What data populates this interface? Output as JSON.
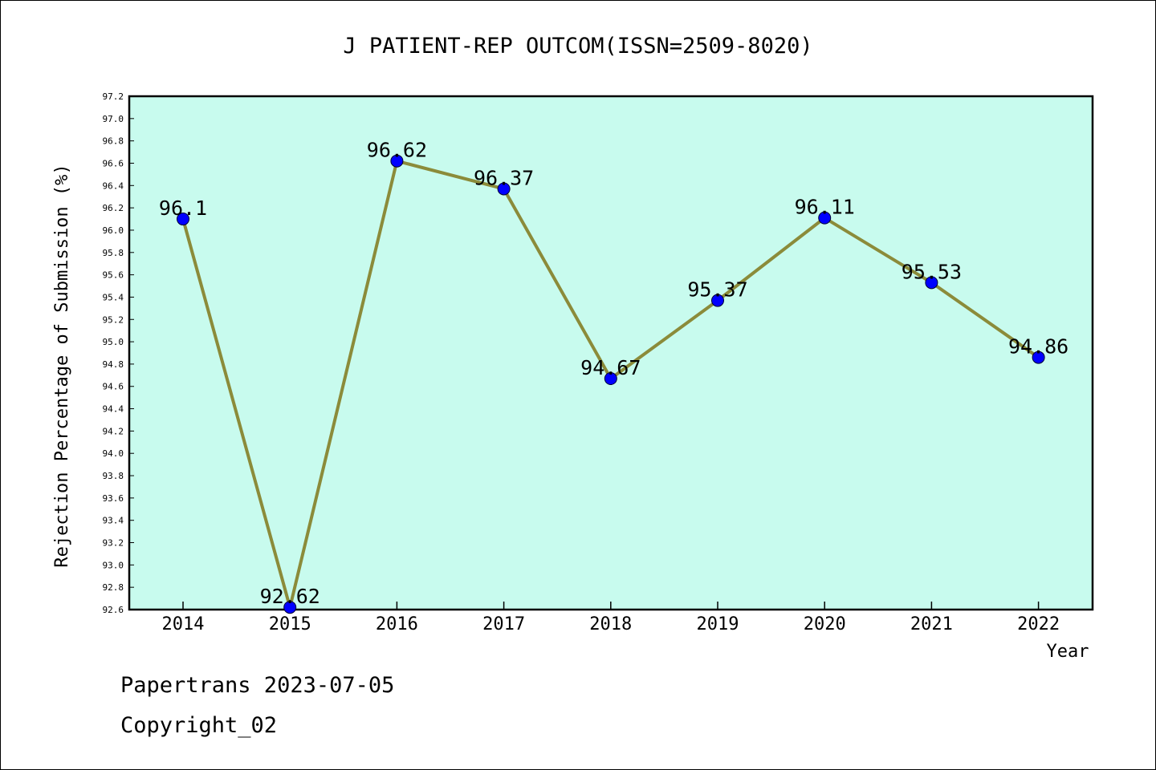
{
  "chart_data": {
    "type": "line",
    "title": "J PATIENT-REP OUTCOM(ISSN=2509-8020)",
    "xlabel": "Year",
    "ylabel": "Rejection Percentage of Submission (%)",
    "categories": [
      "2014",
      "2015",
      "2016",
      "2017",
      "2018",
      "2019",
      "2020",
      "2021",
      "2022"
    ],
    "values": [
      96.1,
      92.62,
      96.62,
      96.37,
      94.67,
      95.37,
      96.11,
      95.53,
      94.86
    ],
    "data_labels": [
      "96.1",
      "92.62",
      "96.62",
      "96.37",
      "94.67",
      "95.37",
      "96.11",
      "95.53",
      "94.86"
    ],
    "ylim": [
      92.6,
      97.2
    ],
    "yticks": [
      "92.6",
      "92.8",
      "93.0",
      "93.2",
      "93.4",
      "93.6",
      "93.8",
      "94.0",
      "94.2",
      "94.4",
      "94.6",
      "94.8",
      "95.0",
      "95.2",
      "95.4",
      "95.6",
      "95.8",
      "96.0",
      "96.2",
      "96.4",
      "96.6",
      "96.8",
      "97.0",
      "97.2"
    ],
    "grid": false,
    "colors": {
      "plot_background": "#c8fbee",
      "line": "#8b8b3a",
      "marker": "#0000ff"
    }
  },
  "footer": {
    "line1": "Papertrans 2023-07-05",
    "line2": "Copyright_02"
  }
}
